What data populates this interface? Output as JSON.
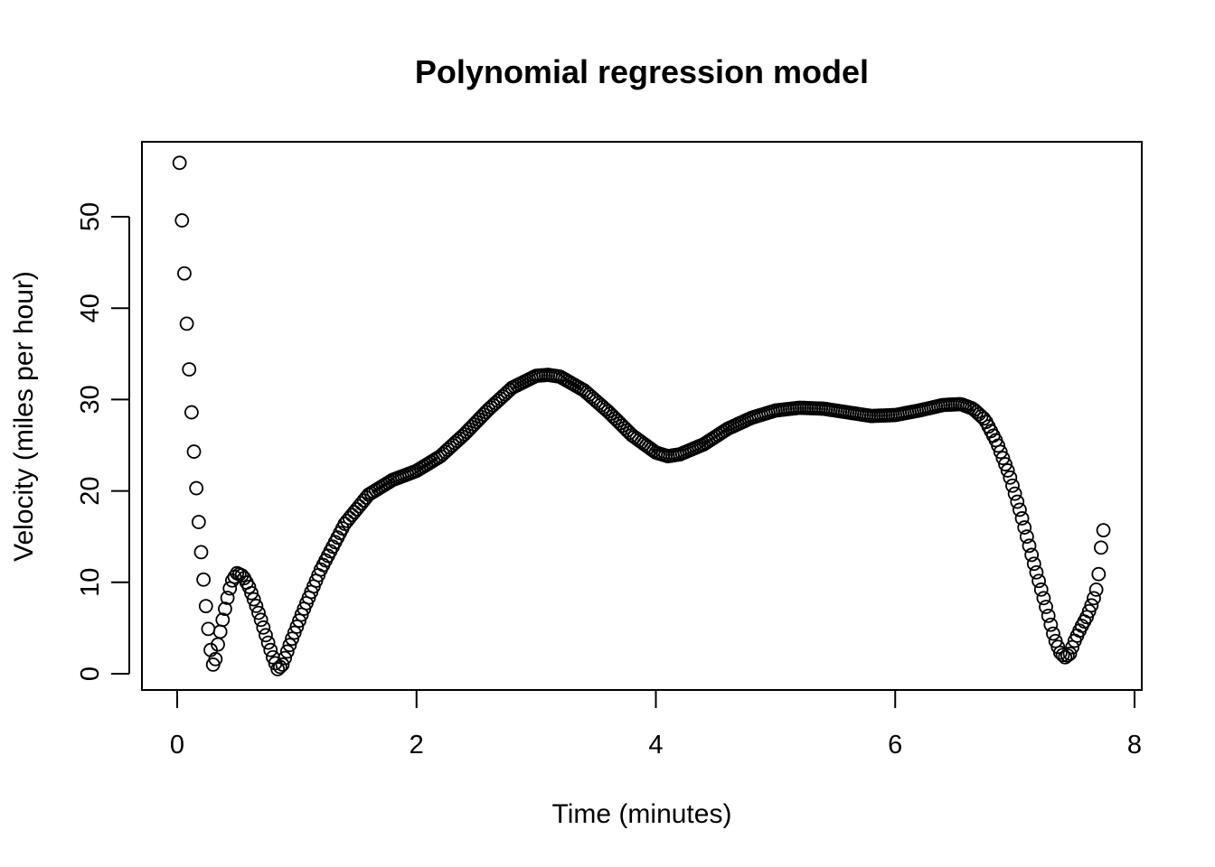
{
  "chart_data": {
    "type": "scatter",
    "title": "Polynomial regression model",
    "xlabel": "Time (minutes)",
    "ylabel": "Velocity (miles per hour)",
    "xlim": [
      0,
      8
    ],
    "ylim": [
      0,
      55
    ],
    "x_ticks": [
      0,
      2,
      4,
      6,
      8
    ],
    "y_ticks": [
      0,
      10,
      20,
      30,
      40,
      50
    ],
    "grid": false,
    "marker": "open-circle",
    "x_start": 0.02,
    "x_end": 7.74,
    "x_step": 0.02,
    "curve_knots": [
      [
        0.02,
        55.9
      ],
      [
        0.04,
        49.6
      ],
      [
        0.06,
        43.8
      ],
      [
        0.08,
        38.3
      ],
      [
        0.1,
        33.3
      ],
      [
        0.12,
        28.6
      ],
      [
        0.14,
        24.3
      ],
      [
        0.16,
        20.3
      ],
      [
        0.18,
        16.6
      ],
      [
        0.2,
        13.3
      ],
      [
        0.22,
        10.3
      ],
      [
        0.24,
        7.4
      ],
      [
        0.26,
        4.9
      ],
      [
        0.28,
        2.6
      ],
      [
        0.3,
        1.0
      ],
      [
        0.32,
        1.6
      ],
      [
        0.34,
        3.2
      ],
      [
        0.36,
        4.6
      ],
      [
        0.38,
        5.9
      ],
      [
        0.4,
        7.1
      ],
      [
        0.43,
        8.9
      ],
      [
        0.46,
        10.2
      ],
      [
        0.5,
        11.0
      ],
      [
        0.55,
        10.7
      ],
      [
        0.6,
        9.5
      ],
      [
        0.65,
        7.8
      ],
      [
        0.7,
        5.9
      ],
      [
        0.75,
        3.8
      ],
      [
        0.8,
        1.8
      ],
      [
        0.84,
        0.5
      ],
      [
        0.88,
        1.0
      ],
      [
        0.95,
        3.5
      ],
      [
        1.05,
        6.8
      ],
      [
        1.2,
        11.4
      ],
      [
        1.4,
        16.4
      ],
      [
        1.6,
        19.6
      ],
      [
        1.8,
        21.2
      ],
      [
        2.0,
        22.2
      ],
      [
        2.2,
        23.8
      ],
      [
        2.4,
        26.2
      ],
      [
        2.6,
        28.9
      ],
      [
        2.8,
        31.3
      ],
      [
        3.0,
        32.6
      ],
      [
        3.1,
        32.7
      ],
      [
        3.2,
        32.5
      ],
      [
        3.4,
        31.0
      ],
      [
        3.6,
        28.7
      ],
      [
        3.8,
        26.1
      ],
      [
        4.0,
        24.2
      ],
      [
        4.1,
        23.8
      ],
      [
        4.2,
        24.0
      ],
      [
        4.4,
        25.1
      ],
      [
        4.6,
        26.8
      ],
      [
        4.8,
        28.0
      ],
      [
        5.0,
        28.8
      ],
      [
        5.2,
        29.1
      ],
      [
        5.4,
        29.0
      ],
      [
        5.6,
        28.6
      ],
      [
        5.8,
        28.2
      ],
      [
        6.0,
        28.3
      ],
      [
        6.2,
        28.8
      ],
      [
        6.4,
        29.4
      ],
      [
        6.55,
        29.5
      ],
      [
        6.65,
        29.0
      ],
      [
        6.75,
        27.8
      ],
      [
        6.85,
        25.3
      ],
      [
        6.95,
        21.9
      ],
      [
        7.05,
        17.5
      ],
      [
        7.15,
        12.5
      ],
      [
        7.25,
        7.8
      ],
      [
        7.33,
        3.9
      ],
      [
        7.38,
        2.3
      ],
      [
        7.42,
        1.8
      ],
      [
        7.46,
        2.2
      ],
      [
        7.5,
        3.6
      ],
      [
        7.55,
        5.0
      ],
      [
        7.6,
        6.2
      ],
      [
        7.65,
        7.8
      ],
      [
        7.68,
        9.2
      ],
      [
        7.7,
        10.9
      ],
      [
        7.72,
        13.8
      ],
      [
        7.74,
        15.7
      ]
    ]
  }
}
